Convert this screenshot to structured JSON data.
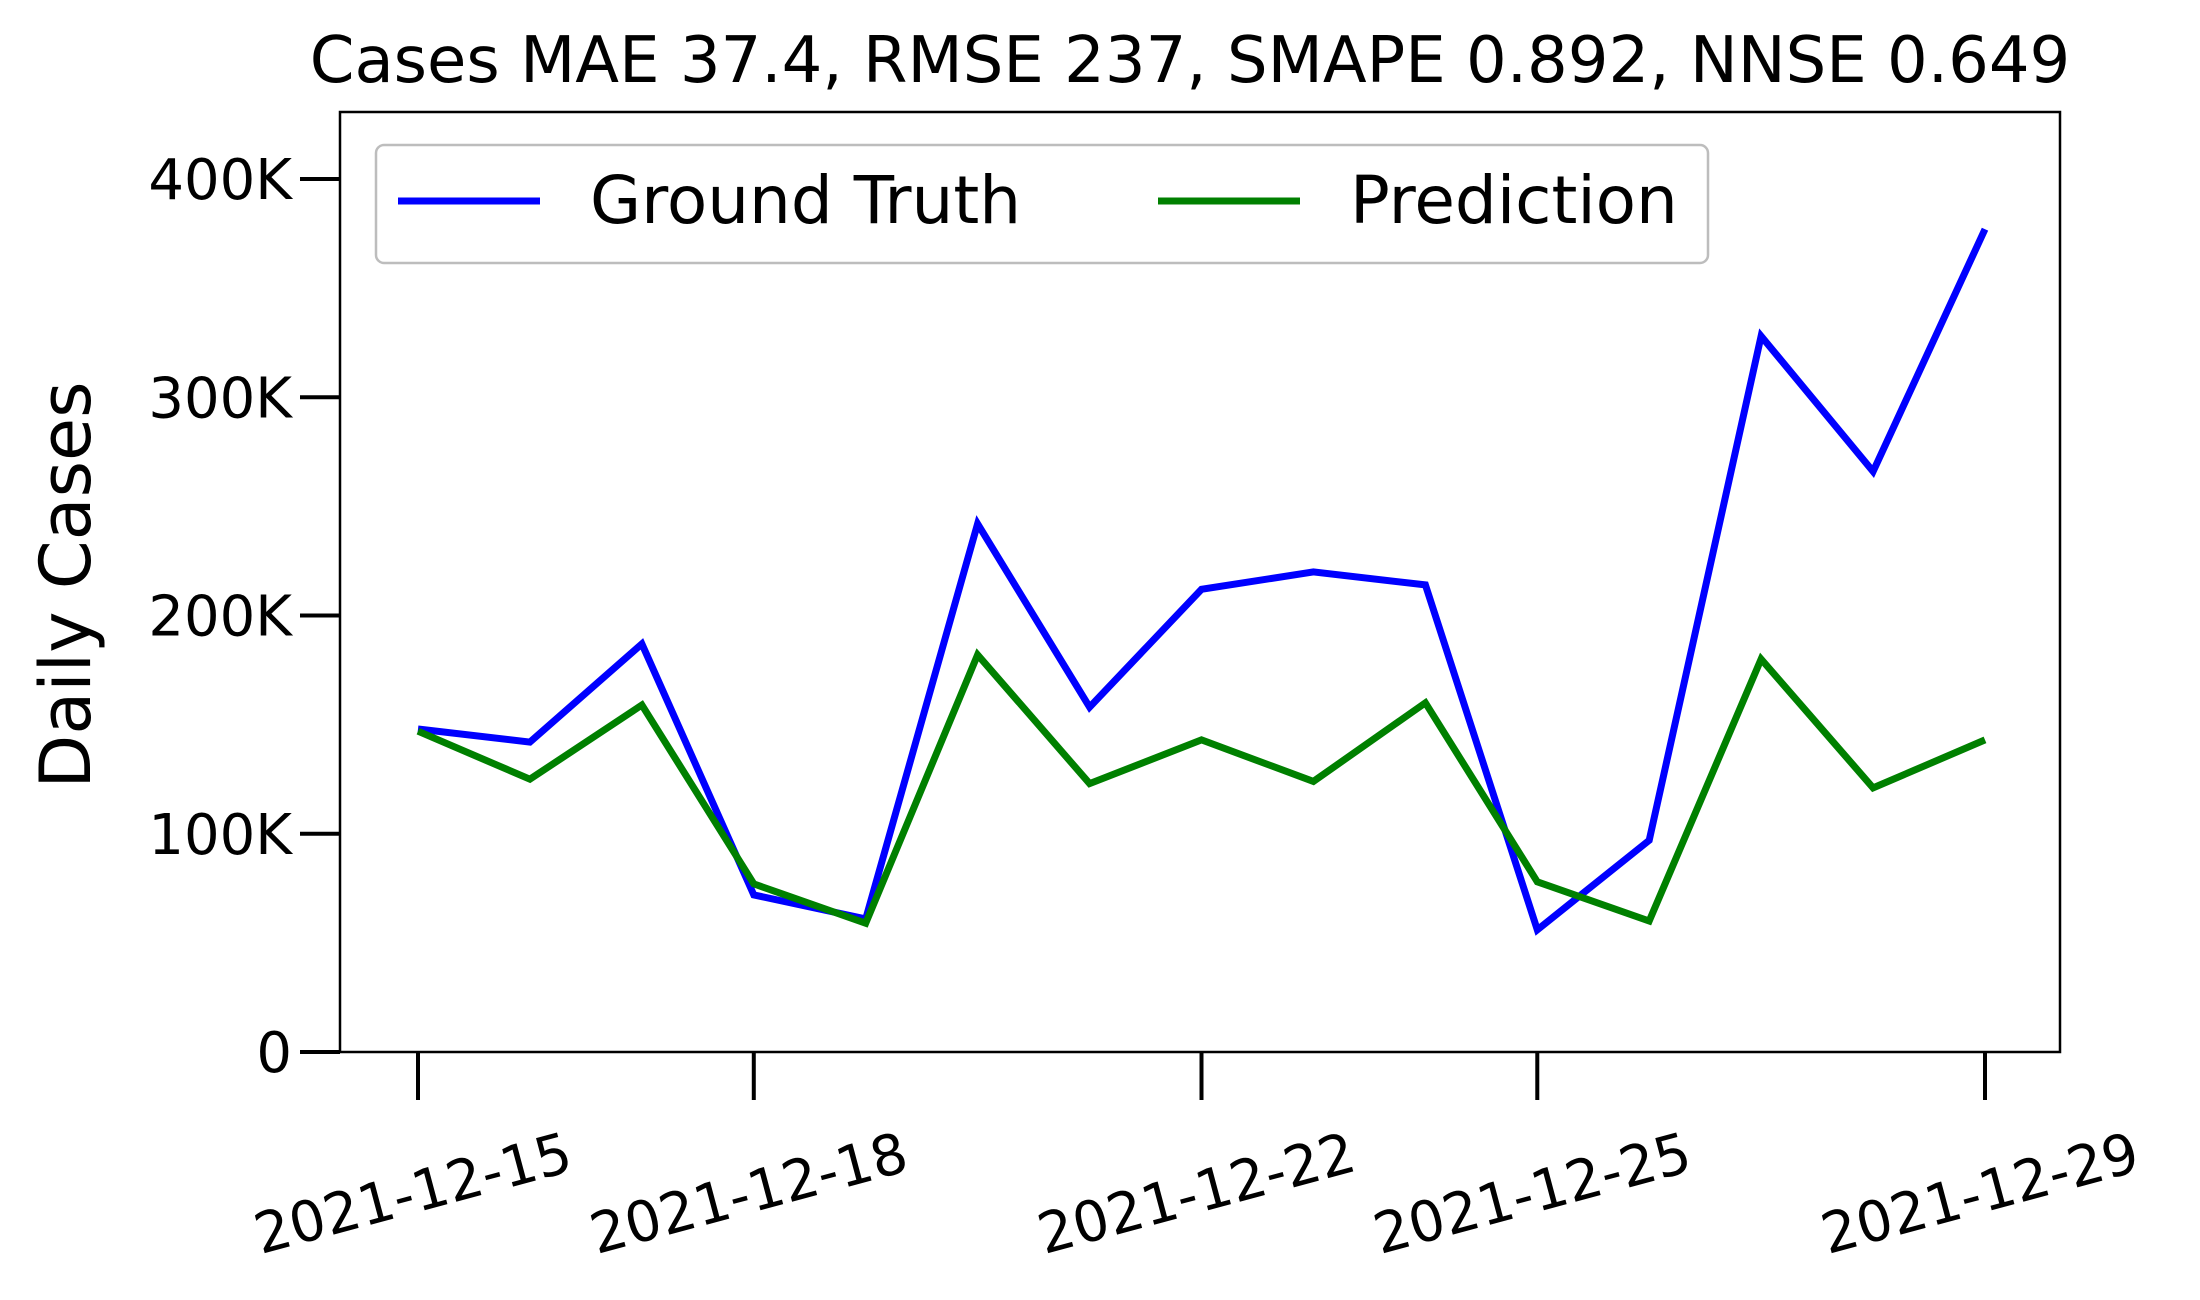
{
  "chart_data": {
    "type": "line",
    "title": "Cases MAE 37.4, RMSE 237, SMAPE 0.892, NNSE 0.649",
    "xlabel": "",
    "ylabel": "Daily Cases",
    "x": [
      "2021-12-15",
      "2021-12-16",
      "2021-12-17",
      "2021-12-18",
      "2021-12-19",
      "2021-12-20",
      "2021-12-21",
      "2021-12-22",
      "2021-12-23",
      "2021-12-24",
      "2021-12-25",
      "2021-12-26",
      "2021-12-27",
      "2021-12-28",
      "2021-12-29"
    ],
    "x_ticks": [
      "2021-12-15",
      "2021-12-18",
      "2021-12-22",
      "2021-12-25",
      "2021-12-29"
    ],
    "y_ticks": [
      {
        "value": 0,
        "label": "0"
      },
      {
        "value": 100000,
        "label": "100K"
      },
      {
        "value": 200000,
        "label": "200K"
      },
      {
        "value": 300000,
        "label": "300K"
      },
      {
        "value": 400000,
        "label": "400K"
      }
    ],
    "ylim": [
      0,
      400000
    ],
    "legend_position": "top-left",
    "grid": false,
    "series": [
      {
        "name": "Ground Truth",
        "color": "#0000ff",
        "values": [
          148000,
          142000,
          187000,
          72000,
          61000,
          242000,
          158000,
          212000,
          220000,
          214000,
          56000,
          97000,
          328000,
          266000,
          377000
        ]
      },
      {
        "name": "Prediction",
        "color": "#008000",
        "values": [
          147000,
          125000,
          159000,
          77000,
          59000,
          182000,
          123000,
          143000,
          124000,
          160000,
          78000,
          60000,
          180000,
          121000,
          143000
        ]
      }
    ]
  }
}
